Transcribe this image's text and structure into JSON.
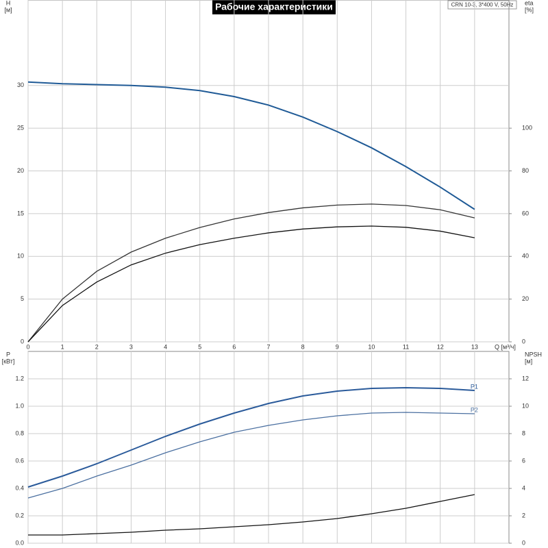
{
  "chart_data": [
    {
      "type": "line",
      "title": "Рабочие характеристики",
      "model": "CRN 10-3, 3*400 V, 50Hz",
      "y_label": "H",
      "y_unit": "[м]",
      "y2_label": "eta",
      "y2_unit": "[%]",
      "x_label": "Q [м³/ч]",
      "x": [
        0,
        1,
        2,
        3,
        4,
        5,
        6,
        7,
        8,
        9,
        10,
        11,
        12,
        13
      ],
      "xlim": [
        0,
        14
      ],
      "xticks": [
        0,
        1,
        2,
        3,
        4,
        5,
        6,
        7,
        8,
        9,
        10,
        11,
        12,
        13
      ],
      "ylim": [
        0,
        40
      ],
      "yticks": [
        0,
        5,
        10,
        15,
        20,
        25,
        30
      ],
      "y2lim": [
        0,
        160
      ],
      "y2ticks": [
        0,
        20,
        40,
        60,
        80,
        100
      ],
      "grid": true,
      "series": [
        {
          "color": "#1f5a96",
          "values": [
            30.4,
            30.2,
            30.1,
            30.0,
            29.8,
            29.4,
            28.7,
            27.7,
            26.3,
            24.6,
            22.7,
            20.5,
            18.1,
            15.5
          ]
        },
        {
          "color": "#333333",
          "axis": "y2",
          "values": [
            0,
            20,
            33,
            42,
            48.5,
            53.5,
            57.5,
            60.5,
            62.7,
            64,
            64.5,
            63.8,
            61.8,
            58
          ]
        },
        {
          "color": "#111111",
          "axis": "y2",
          "values": [
            0,
            17,
            28,
            36,
            41.5,
            45.5,
            48.5,
            51,
            52.8,
            53.8,
            54.2,
            53.6,
            51.8,
            48.7
          ]
        }
      ]
    },
    {
      "type": "line",
      "y_label": "P",
      "y_unit": "[кВт]",
      "y2_label": "NPSH",
      "y2_unit": "[м]",
      "x": [
        0,
        1,
        2,
        3,
        4,
        5,
        6,
        7,
        8,
        9,
        10,
        11,
        12,
        13
      ],
      "xlim": [
        0,
        14
      ],
      "xticks": [
        0,
        1,
        2,
        3,
        4,
        5,
        6,
        7,
        8,
        9,
        10,
        11,
        12,
        13
      ],
      "ylim": [
        0,
        1.4
      ],
      "yticks": [
        {
          "value": 0,
          "label": "0.0"
        },
        0.2,
        0.4,
        0.6,
        0.8,
        {
          "value": 1,
          "label": "1.0"
        },
        1.2
      ],
      "y2lim": [
        0,
        14
      ],
      "y2ticks": [
        0,
        2,
        4,
        6,
        8,
        10,
        12
      ],
      "grid": true,
      "series": [
        {
          "name": "P1",
          "color": "#2a5a9a",
          "values": [
            0.41,
            0.49,
            0.58,
            0.68,
            0.78,
            0.87,
            0.95,
            1.02,
            1.075,
            1.11,
            1.13,
            1.135,
            1.13,
            1.115
          ]
        },
        {
          "name": "P2",
          "color": "#4a6fa0",
          "values": [
            0.33,
            0.4,
            0.49,
            0.57,
            0.66,
            0.74,
            0.81,
            0.86,
            0.9,
            0.93,
            0.95,
            0.955,
            0.95,
            0.945
          ]
        },
        {
          "color": "#111111",
          "axis": "y2",
          "values": [
            0.6,
            0.6,
            0.7,
            0.8,
            0.95,
            1.05,
            1.2,
            1.35,
            1.55,
            1.8,
            2.15,
            2.55,
            3.05,
            3.55
          ]
        }
      ]
    }
  ]
}
